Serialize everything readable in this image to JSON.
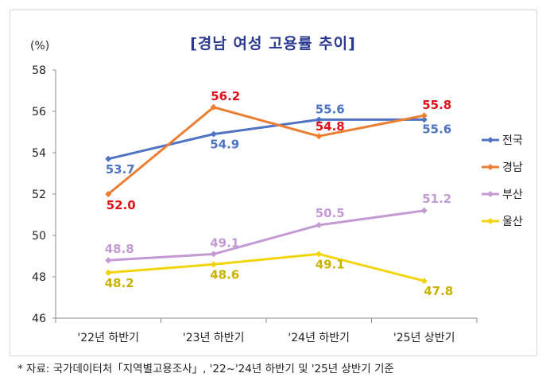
{
  "title": "[경남 여성 고용률 추이]",
  "unit": "(%)",
  "source": "* 자료: 국가데이터처「지역별고용조사」, '22~'24년 하반기 및 '25년 상반기 기준",
  "chart_data": {
    "type": "line",
    "title": "[경남 여성 고용률 추이]",
    "ylabel": "(%)",
    "categories": [
      "'22년 하반기",
      "'23년 하반기",
      "'24년 하반기",
      "'25년 상반기"
    ],
    "ylim": [
      46,
      58
    ],
    "yticks": [
      46,
      48,
      50,
      52,
      54,
      56,
      58
    ],
    "grid": false,
    "legend_position": "right",
    "series": [
      {
        "name": "전국",
        "color": "#4f74c3",
        "labelColor": "#4f74c3",
        "values": [
          53.7,
          54.9,
          55.6,
          55.6
        ]
      },
      {
        "name": "경남",
        "color": "#ed7d31",
        "labelColor": "#e0101a",
        "values": [
          52.0,
          56.2,
          54.8,
          55.8
        ]
      },
      {
        "name": "부산",
        "color": "#c39bd3",
        "labelColor": "#c39bd3",
        "values": [
          48.8,
          49.1,
          50.5,
          51.2
        ]
      },
      {
        "name": "울산",
        "color": "#f2d40c",
        "labelColor": "#c9b200",
        "values": [
          48.2,
          48.6,
          49.1,
          47.8
        ]
      }
    ]
  }
}
